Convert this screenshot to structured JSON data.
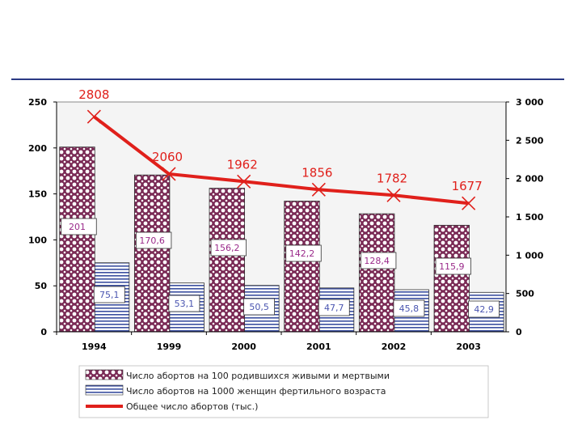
{
  "chart_data": {
    "type": "bar",
    "categories": [
      "1994",
      "1999",
      "2000",
      "2001",
      "2002",
      "2003"
    ],
    "series": [
      {
        "name": "Число абортов на 100 родившихся живыми и мертвыми",
        "kind": "bar",
        "axis": "left",
        "values": [
          201,
          170.6,
          156.2,
          142.2,
          128.4,
          115.9
        ],
        "labels": [
          "201",
          "170,6",
          "156,2",
          "142,2",
          "128,4",
          "115,9"
        ],
        "color": "#7a2a55",
        "label_color": "#9a2a8a"
      },
      {
        "name": "Число абортов на 1000 женщин фертильного возраста",
        "kind": "bar",
        "axis": "left",
        "values": [
          75.1,
          53.1,
          50.5,
          47.7,
          45.8,
          42.9
        ],
        "labels": [
          "75,1",
          "53,1",
          "50,5",
          "47,7",
          "45,8",
          "42,9"
        ],
        "color": "#3b4fa0",
        "label_color": "#4a55b0"
      },
      {
        "name": "Общее число абортов (тыс.)",
        "kind": "line",
        "axis": "right",
        "values": [
          2808,
          2060,
          1962,
          1856,
          1782,
          1677
        ],
        "labels": [
          "2808",
          "2060",
          "1962",
          "1856",
          "1782",
          "1677"
        ],
        "color": "#e0201b"
      }
    ],
    "left_axis": {
      "ylim": [
        0,
        250
      ],
      "ticks": [
        "0",
        "50",
        "100",
        "150",
        "200",
        "250"
      ]
    },
    "right_axis": {
      "ylim": [
        0,
        3000
      ],
      "ticks": [
        "0",
        "500",
        "1 000",
        "1 500",
        "2 000",
        "2 500",
        "3 000"
      ]
    },
    "grid": false,
    "legend_position": "bottom"
  }
}
